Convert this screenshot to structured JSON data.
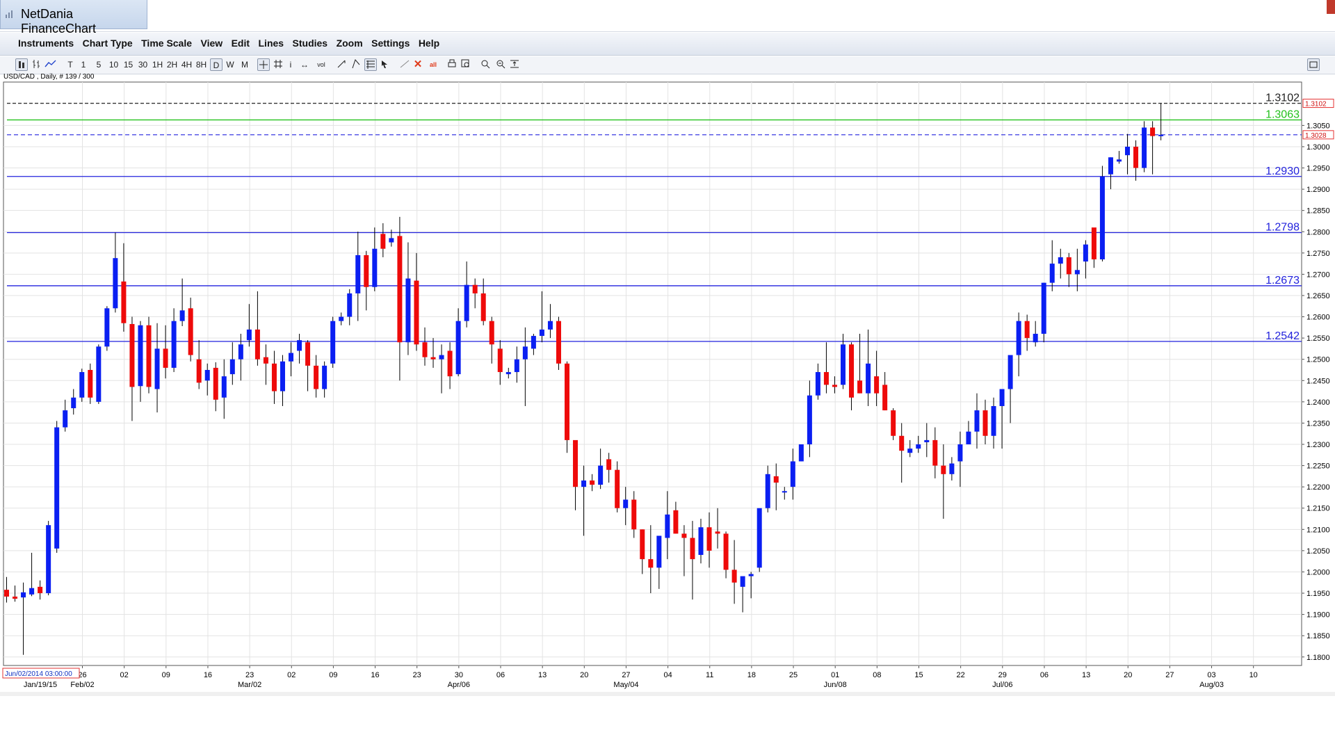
{
  "app": {
    "title": "NetDania FinanceChart"
  },
  "menu": {
    "items": [
      "Instruments",
      "Chart Type",
      "Time Scale",
      "View",
      "Edit",
      "Lines",
      "Studies",
      "Zoom",
      "Settings",
      "Help"
    ]
  },
  "toolbar": {
    "timeframes": [
      "T",
      "1",
      "5",
      "10",
      "15",
      "30",
      "1H",
      "2H",
      "4H",
      "8H",
      "D",
      "W",
      "M"
    ],
    "active_timeframe": "D",
    "vol_label": "vol",
    "all_label": "all",
    "icons": [
      "candles-icon",
      "bars-icon",
      "line-icon",
      "crosshair-icon",
      "grid-icon",
      "info-icon",
      "pan-icon",
      "volume-icon",
      "trendline-icon",
      "channel-icon",
      "fib-icon",
      "cursor-icon",
      "draw-line-icon",
      "delete-icon",
      "delete-all-icon",
      "print-icon",
      "zoom-window-icon",
      "zoom-in-icon",
      "zoom-out-icon",
      "fit-icon",
      "panel-toggle-icon"
    ]
  },
  "chart": {
    "symbol_label": "USD/CAD , Daily, # 139 / 300",
    "start_date_label": "Jun/02/2014 03:00:00",
    "colors": {
      "up": "#0a1ff2",
      "down": "#ee0a0a",
      "hline": "#2222dd",
      "green": "#22c11b",
      "last": "#e53030"
    }
  },
  "chart_data": {
    "type": "candlestick",
    "instrument": "USD/CAD",
    "timeframe": "Daily",
    "ylim": [
      1.178,
      1.3152
    ],
    "y_ticks": [
      1.18,
      1.185,
      1.19,
      1.195,
      1.2,
      1.205,
      1.21,
      1.215,
      1.22,
      1.225,
      1.23,
      1.235,
      1.24,
      1.245,
      1.25,
      1.255,
      1.26,
      1.265,
      1.27,
      1.275,
      1.28,
      1.285,
      1.29,
      1.295,
      1.3,
      1.305
    ],
    "y_tick_labels": [
      "1.1800",
      "1.1850",
      "1.1900",
      "1.1950",
      "1.2000",
      "1.2050",
      "1.2100",
      "1.2150",
      "1.2200",
      "1.2250",
      "1.2300",
      "1.2350",
      "1.2400",
      "1.2450",
      "1.2500",
      "1.2550",
      "1.2600",
      "1.2650",
      "1.2700",
      "1.2750",
      "1.2800",
      "1.2850",
      "1.2900",
      "1.2950",
      "1.3000",
      "1.3050"
    ],
    "x_tick_labels": [
      "26",
      "02",
      "09",
      "16",
      "23",
      "02",
      "09",
      "16",
      "23",
      "30",
      "06",
      "13",
      "20",
      "27",
      "04",
      "11",
      "18",
      "25",
      "01",
      "08",
      "15",
      "22",
      "29",
      "06",
      "13",
      "20",
      "27",
      "03",
      "10"
    ],
    "month_labels": [
      "Jan/19/15",
      "Feb/02",
      "Mar/02",
      "Apr/06",
      "May/04",
      "Jun/08",
      "Jul/06",
      "Aug/03"
    ],
    "horizontal_levels": [
      {
        "value": 1.3102,
        "label": "1.3102",
        "style": "dashed"
      },
      {
        "value": 1.3063,
        "label": "1.3063",
        "style": "solid-green"
      },
      {
        "value": 1.293,
        "label": "1.2930",
        "style": "solid"
      },
      {
        "value": 1.2798,
        "label": "1.2798",
        "style": "solid"
      },
      {
        "value": 1.2673,
        "label": "1.2673",
        "style": "solid"
      },
      {
        "value": 1.2542,
        "label": "1.2542",
        "style": "solid"
      }
    ],
    "markers": [
      {
        "value": 1.3102,
        "label": "1.3102"
      },
      {
        "value": 1.3028,
        "label": "1.3028"
      }
    ],
    "current_price": 1.3028,
    "candles_ohlc": [
      [
        1.1958,
        1.1988,
        1.1928,
        1.1942
      ],
      [
        1.1942,
        1.1968,
        1.193,
        1.1937
      ],
      [
        1.194,
        1.1975,
        1.1805,
        1.1952
      ],
      [
        1.1947,
        1.2045,
        1.1943,
        1.1962
      ],
      [
        1.1965,
        1.198,
        1.1935,
        1.195
      ],
      [
        1.195,
        1.212,
        1.1945,
        1.211
      ],
      [
        1.2055,
        1.2355,
        1.2045,
        1.234
      ],
      [
        1.234,
        1.2405,
        1.233,
        1.238
      ],
      [
        1.2385,
        1.243,
        1.237,
        1.241
      ],
      [
        1.241,
        1.2478,
        1.24,
        1.247
      ],
      [
        1.2475,
        1.249,
        1.2395,
        1.241
      ],
      [
        1.24,
        1.2535,
        1.2395,
        1.253
      ],
      [
        1.253,
        1.2625,
        1.252,
        1.262
      ],
      [
        1.262,
        1.2798,
        1.261,
        1.2738
      ],
      [
        1.2683,
        1.2773,
        1.2565,
        1.2585
      ],
      [
        1.2583,
        1.26,
        1.2355,
        1.2435
      ],
      [
        1.2437,
        1.259,
        1.24,
        1.258
      ],
      [
        1.258,
        1.26,
        1.242,
        1.2435
      ],
      [
        1.243,
        1.2585,
        1.2375,
        1.2525
      ],
      [
        1.2525,
        1.258,
        1.2455,
        1.248
      ],
      [
        1.248,
        1.262,
        1.247,
        1.259
      ],
      [
        1.259,
        1.269,
        1.2578,
        1.2615
      ],
      [
        1.262,
        1.2645,
        1.2495,
        1.251
      ],
      [
        1.25,
        1.2545,
        1.243,
        1.2445
      ],
      [
        1.245,
        1.249,
        1.2415,
        1.2475
      ],
      [
        1.248,
        1.2493,
        1.2378,
        1.2405
      ],
      [
        1.241,
        1.25,
        1.236,
        1.246
      ],
      [
        1.2465,
        1.254,
        1.244,
        1.25
      ],
      [
        1.25,
        1.256,
        1.245,
        1.2535
      ],
      [
        1.2545,
        1.263,
        1.253,
        1.257
      ],
      [
        1.257,
        1.266,
        1.2485,
        1.25
      ],
      [
        1.2505,
        1.2535,
        1.244,
        1.249
      ],
      [
        1.249,
        1.252,
        1.2395,
        1.2425
      ],
      [
        1.2425,
        1.251,
        1.239,
        1.2495
      ],
      [
        1.2495,
        1.254,
        1.246,
        1.2515
      ],
      [
        1.252,
        1.256,
        1.249,
        1.2545
      ],
      [
        1.254,
        1.2545,
        1.2425,
        1.2485
      ],
      [
        1.2485,
        1.251,
        1.241,
        1.243
      ],
      [
        1.243,
        1.2495,
        1.241,
        1.2485
      ],
      [
        1.249,
        1.26,
        1.248,
        1.259
      ],
      [
        1.259,
        1.261,
        1.258,
        1.26
      ],
      [
        1.26,
        1.2665,
        1.258,
        1.2655
      ],
      [
        1.2655,
        1.28,
        1.259,
        1.2745
      ],
      [
        1.2745,
        1.2755,
        1.2615,
        1.267
      ],
      [
        1.267,
        1.281,
        1.266,
        1.276
      ],
      [
        1.2795,
        1.282,
        1.274,
        1.276
      ],
      [
        1.2775,
        1.2805,
        1.2765,
        1.2785
      ],
      [
        1.279,
        1.2835,
        1.245,
        1.254
      ],
      [
        1.254,
        1.2775,
        1.251,
        1.269
      ],
      [
        1.2685,
        1.275,
        1.252,
        1.2535
      ],
      [
        1.254,
        1.2575,
        1.2485,
        1.2505
      ],
      [
        1.2505,
        1.255,
        1.248,
        1.25
      ],
      [
        1.25,
        1.2535,
        1.242,
        1.251
      ],
      [
        1.252,
        1.254,
        1.243,
        1.246
      ],
      [
        1.2465,
        1.262,
        1.246,
        1.259
      ],
      [
        1.259,
        1.273,
        1.2575,
        1.2675
      ],
      [
        1.2675,
        1.269,
        1.262,
        1.2655
      ],
      [
        1.2655,
        1.269,
        1.258,
        1.259
      ],
      [
        1.259,
        1.26,
        1.249,
        1.2535
      ],
      [
        1.2525,
        1.2545,
        1.244,
        1.247
      ],
      [
        1.2465,
        1.248,
        1.2455,
        1.247
      ],
      [
        1.247,
        1.253,
        1.2445,
        1.25
      ],
      [
        1.25,
        1.2575,
        1.239,
        1.253
      ],
      [
        1.2525,
        1.256,
        1.251,
        1.2555
      ],
      [
        1.2555,
        1.266,
        1.254,
        1.257
      ],
      [
        1.257,
        1.263,
        1.255,
        1.259
      ],
      [
        1.259,
        1.26,
        1.2475,
        1.249
      ],
      [
        1.249,
        1.2495,
        1.228,
        1.231
      ],
      [
        1.231,
        1.23,
        1.2145,
        1.22
      ],
      [
        1.22,
        1.225,
        1.2085,
        1.2215
      ],
      [
        1.2215,
        1.223,
        1.219,
        1.2205
      ],
      [
        1.2205,
        1.229,
        1.2195,
        1.225
      ],
      [
        1.2265,
        1.228,
        1.221,
        1.224
      ],
      [
        1.224,
        1.226,
        1.214,
        1.215
      ],
      [
        1.215,
        1.22,
        1.211,
        1.217
      ],
      [
        1.217,
        1.219,
        1.208,
        1.21
      ],
      [
        1.21,
        1.21,
        1.1995,
        1.203
      ],
      [
        1.203,
        1.211,
        1.195,
        1.201
      ],
      [
        1.201,
        1.208,
        1.196,
        1.2085
      ],
      [
        1.208,
        1.219,
        1.203,
        1.2135
      ],
      [
        1.2145,
        1.2165,
        1.209,
        1.209
      ],
      [
        1.209,
        1.211,
        1.199,
        1.208
      ],
      [
        1.208,
        1.212,
        1.1935,
        1.203
      ],
      [
        1.204,
        1.2125,
        1.202,
        1.2105
      ],
      [
        1.2105,
        1.214,
        1.201,
        1.205
      ],
      [
        1.2095,
        1.215,
        1.2055,
        1.209
      ],
      [
        1.209,
        1.2095,
        1.1985,
        1.2005
      ],
      [
        1.2005,
        1.2075,
        1.1925,
        1.1975
      ],
      [
        1.1965,
        1.1985,
        1.1905,
        1.199
      ],
      [
        1.199,
        1.2,
        1.1938,
        1.1995
      ],
      [
        1.201,
        1.212,
        1.2,
        1.215
      ],
      [
        1.215,
        1.225,
        1.214,
        1.223
      ],
      [
        1.2225,
        1.2255,
        1.2145,
        1.221
      ],
      [
        1.219,
        1.22,
        1.217,
        1.219
      ],
      [
        1.22,
        1.229,
        1.217,
        1.226
      ],
      [
        1.226,
        1.2295,
        1.226,
        1.23
      ],
      [
        1.23,
        1.245,
        1.227,
        1.2415
      ],
      [
        1.2415,
        1.249,
        1.2405,
        1.247
      ],
      [
        1.247,
        1.254,
        1.242,
        1.244
      ],
      [
        1.244,
        1.246,
        1.242,
        1.2435
      ],
      [
        1.244,
        1.256,
        1.243,
        1.2535
      ],
      [
        1.2535,
        1.254,
        1.238,
        1.241
      ],
      [
        1.245,
        1.256,
        1.242,
        1.242
      ],
      [
        1.242,
        1.257,
        1.239,
        1.249
      ],
      [
        1.246,
        1.252,
        1.239,
        1.242
      ],
      [
        1.244,
        1.247,
        1.238,
        1.238
      ],
      [
        1.238,
        1.2385,
        1.231,
        1.232
      ],
      [
        1.232,
        1.235,
        1.221,
        1.2285
      ],
      [
        1.228,
        1.231,
        1.227,
        1.229
      ],
      [
        1.229,
        1.232,
        1.228,
        1.23
      ],
      [
        1.2305,
        1.235,
        1.227,
        1.231
      ],
      [
        1.231,
        1.234,
        1.222,
        1.225
      ],
      [
        1.225,
        1.23,
        1.2125,
        1.223
      ],
      [
        1.223,
        1.227,
        1.2215,
        1.2255
      ],
      [
        1.226,
        1.233,
        1.22,
        1.23
      ],
      [
        1.23,
        1.2355,
        1.2305,
        1.233
      ],
      [
        1.233,
        1.242,
        1.229,
        1.238
      ],
      [
        1.238,
        1.2405,
        1.23,
        1.232
      ],
      [
        1.232,
        1.241,
        1.229,
        1.239
      ],
      [
        1.239,
        1.242,
        1.229,
        1.243
      ],
      [
        1.243,
        1.247,
        1.235,
        1.251
      ],
      [
        1.251,
        1.261,
        1.246,
        1.259
      ],
      [
        1.259,
        1.2605,
        1.252,
        1.255
      ],
      [
        1.254,
        1.259,
        1.253,
        1.256
      ],
      [
        1.256,
        1.268,
        1.254,
        1.268
      ],
      [
        1.268,
        1.278,
        1.266,
        1.2725
      ],
      [
        1.2725,
        1.276,
        1.269,
        1.274
      ],
      [
        1.274,
        1.275,
        1.267,
        1.27
      ],
      [
        1.27,
        1.276,
        1.266,
        1.271
      ],
      [
        1.273,
        1.278,
        1.269,
        1.277
      ],
      [
        1.281,
        1.2805,
        1.2715,
        1.2735
      ],
      [
        1.2735,
        1.2955,
        1.273,
        1.293
      ],
      [
        1.2935,
        1.2975,
        1.29,
        1.2975
      ],
      [
        1.2965,
        1.299,
        1.296,
        1.297
      ],
      [
        1.298,
        1.303,
        1.2935,
        1.3
      ],
      [
        1.3,
        1.3015,
        1.292,
        1.295
      ],
      [
        1.295,
        1.306,
        1.294,
        1.3045
      ],
      [
        1.3045,
        1.306,
        1.2935,
        1.3025
      ],
      [
        1.3025,
        1.3102,
        1.3015,
        1.3028
      ]
    ]
  }
}
